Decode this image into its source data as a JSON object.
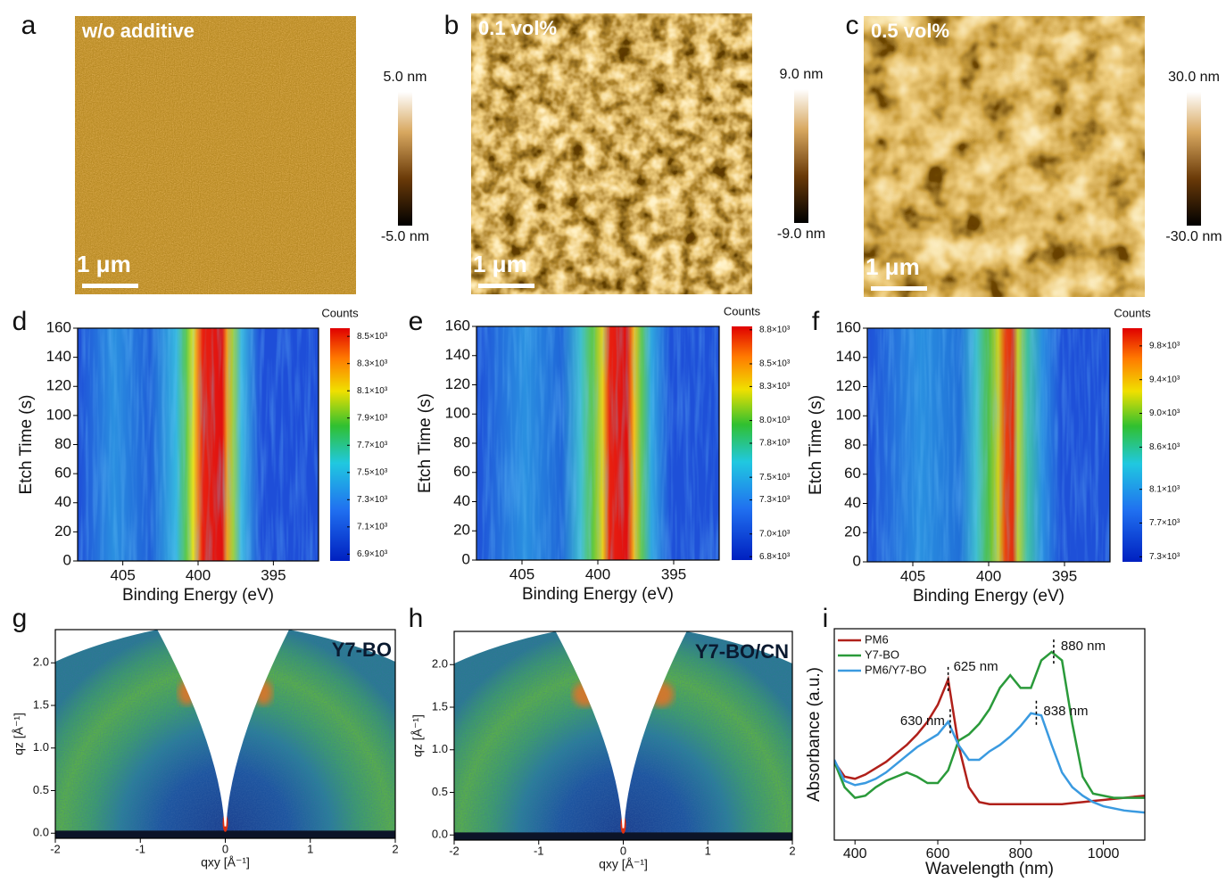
{
  "afm": [
    {
      "letter": "a",
      "label": "w/o additive",
      "scale_bar": "1 μm",
      "range_max": "5.0 nm",
      "range_min": "-5.0 nm"
    },
    {
      "letter": "b",
      "label": "0.1 vol%",
      "scale_bar": "1 μm",
      "range_max": "9.0 nm",
      "range_min": "-9.0 nm"
    },
    {
      "letter": "c",
      "label": "0.5 vol%",
      "scale_bar": "1 μm",
      "range_max": "30.0 nm",
      "range_min": "-30.0 nm"
    }
  ],
  "chart_data": [
    {
      "type": "heatmap",
      "letter": "d",
      "xlabel": "Binding Energy (eV)",
      "ylabel": "Etch Time (s)",
      "xlim": [
        408,
        392
      ],
      "xticks": [
        405,
        400,
        395
      ],
      "ylim": [
        0,
        160
      ],
      "yticks": [
        0,
        20,
        40,
        60,
        80,
        100,
        120,
        140,
        160
      ],
      "colorbar_title": "Counts",
      "clim": [
        6850,
        8560
      ],
      "cticks": [
        {
          "value": 6900,
          "label": "6.9×10³"
        },
        {
          "value": 7100,
          "label": "7.1×10³"
        },
        {
          "value": 7300,
          "label": "7.3×10³"
        },
        {
          "value": 7500,
          "label": "7.5×10³"
        },
        {
          "value": 7700,
          "label": "7.7×10³"
        },
        {
          "value": 7900,
          "label": "7.9×10³"
        },
        {
          "value": 8100,
          "label": "8.1×10³"
        },
        {
          "value": 8300,
          "label": "8.3×10³"
        },
        {
          "value": 8500,
          "label": "8.5×10³"
        }
      ]
    },
    {
      "type": "heatmap",
      "letter": "e",
      "xlabel": "Binding Energy (eV)",
      "ylabel": "Etch Time (s)",
      "xlim": [
        408,
        392
      ],
      "xticks": [
        405,
        400,
        395
      ],
      "ylim": [
        0,
        160
      ],
      "yticks": [
        0,
        20,
        40,
        60,
        80,
        100,
        120,
        140,
        160
      ],
      "colorbar_title": "Counts",
      "clim": [
        6770,
        8830
      ],
      "cticks": [
        {
          "value": 6800,
          "label": "6.8×10³"
        },
        {
          "value": 7000,
          "label": "7.0×10³"
        },
        {
          "value": 7300,
          "label": "7.3×10³"
        },
        {
          "value": 7500,
          "label": "7.5×10³"
        },
        {
          "value": 7800,
          "label": "7.8×10³"
        },
        {
          "value": 8000,
          "label": "8.0×10³"
        },
        {
          "value": 8300,
          "label": "8.3×10³"
        },
        {
          "value": 8500,
          "label": "8.5×10³"
        },
        {
          "value": 8800,
          "label": "8.8×10³"
        }
      ]
    },
    {
      "type": "heatmap",
      "letter": "f",
      "xlabel": "Binding Energy (eV)",
      "ylabel": "Etch Time (s)",
      "xlim": [
        408,
        392
      ],
      "xticks": [
        405,
        400,
        395
      ],
      "ylim": [
        0,
        160
      ],
      "yticks": [
        0,
        20,
        40,
        60,
        80,
        100,
        120,
        140,
        160
      ],
      "colorbar_title": "Counts",
      "clim": [
        7240,
        10010
      ],
      "cticks": [
        {
          "value": 7300,
          "label": "7.3×10³"
        },
        {
          "value": 7700,
          "label": "7.7×10³"
        },
        {
          "value": 8100,
          "label": "8.1×10³"
        },
        {
          "value": 8600,
          "label": "8.6×10³"
        },
        {
          "value": 9000,
          "label": "9.0×10³"
        },
        {
          "value": 9400,
          "label": "9.4×10³"
        },
        {
          "value": 9800,
          "label": "9.8×10³"
        }
      ]
    },
    {
      "type": "giwaxs",
      "letter": "g",
      "label": "Y7-BO",
      "xlabel": "qxy [Å⁻¹]",
      "ylabel": "qz [Å⁻¹]",
      "xlim": [
        -2,
        2
      ],
      "xticks": [
        -2,
        -1,
        0,
        1,
        2
      ],
      "ylim": [
        -0.06,
        2.39
      ],
      "yticks": [
        {
          "value": 0,
          "label": "0.0"
        },
        0.5,
        {
          "value": 1,
          "label": "1.0"
        },
        1.5,
        {
          "value": 2,
          "label": "2.0"
        }
      ]
    },
    {
      "type": "giwaxs",
      "letter": "h",
      "label": "Y7-BO/CN",
      "xlabel": "qxy [Å⁻¹]",
      "ylabel": "qz [Å⁻¹]",
      "xlim": [
        -2,
        2
      ],
      "xticks": [
        -2,
        -1,
        0,
        1,
        2
      ],
      "ylim": [
        -0.06,
        2.39
      ],
      "yticks": [
        {
          "value": 0,
          "label": "0.0"
        },
        0.5,
        {
          "value": 1,
          "label": "1.0"
        },
        1.5,
        {
          "value": 2,
          "label": "2.0"
        }
      ]
    },
    {
      "type": "line",
      "letter": "i",
      "xlabel": "Wavelength (nm)",
      "ylabel": "Absorbance (a.u.)",
      "xlim": [
        350,
        1100
      ],
      "xticks": [
        400,
        600,
        800,
        1000
      ],
      "ylim": [
        0,
        1
      ],
      "legend": "upper left",
      "x": [
        350,
        375,
        400,
        425,
        450,
        475,
        500,
        525,
        550,
        575,
        600,
        625,
        650,
        675,
        700,
        725,
        750,
        775,
        800,
        825,
        850,
        875,
        900,
        925,
        950,
        975,
        1000,
        1025,
        1050,
        1075,
        1100
      ],
      "series": [
        {
          "name": "PM6",
          "color": "#b0201a",
          "values": [
            0.37,
            0.3,
            0.29,
            0.31,
            0.34,
            0.37,
            0.41,
            0.45,
            0.5,
            0.56,
            0.64,
            0.76,
            0.45,
            0.25,
            0.18,
            0.17,
            0.17,
            0.17,
            0.17,
            0.17,
            0.17,
            0.17,
            0.17,
            0.175,
            0.18,
            0.185,
            0.19,
            0.195,
            0.2,
            0.205,
            0.21
          ]
        },
        {
          "name": "Y7-BO",
          "color": "#2a9a3a",
          "values": [
            0.37,
            0.25,
            0.2,
            0.21,
            0.25,
            0.28,
            0.3,
            0.32,
            0.3,
            0.27,
            0.27,
            0.33,
            0.47,
            0.5,
            0.55,
            0.62,
            0.72,
            0.78,
            0.72,
            0.72,
            0.85,
            0.89,
            0.85,
            0.55,
            0.3,
            0.22,
            0.21,
            0.2,
            0.2,
            0.2,
            0.2
          ]
        },
        {
          "name": "PM6/Y7-BO",
          "color": "#3a9ae0",
          "values": [
            0.38,
            0.28,
            0.26,
            0.27,
            0.29,
            0.32,
            0.36,
            0.4,
            0.44,
            0.47,
            0.5,
            0.56,
            0.45,
            0.38,
            0.38,
            0.42,
            0.45,
            0.49,
            0.54,
            0.6,
            0.59,
            0.45,
            0.32,
            0.25,
            0.21,
            0.18,
            0.16,
            0.15,
            0.14,
            0.135,
            0.13
          ]
        }
      ],
      "annotations": [
        {
          "label": "625 nm",
          "x": 625,
          "y": 0.76
        },
        {
          "label": "630 nm",
          "x": 630,
          "y": 0.56
        },
        {
          "label": "880 nm",
          "x": 880,
          "y": 0.89
        },
        {
          "label": "838 nm",
          "x": 838,
          "y": 0.6
        }
      ]
    }
  ]
}
